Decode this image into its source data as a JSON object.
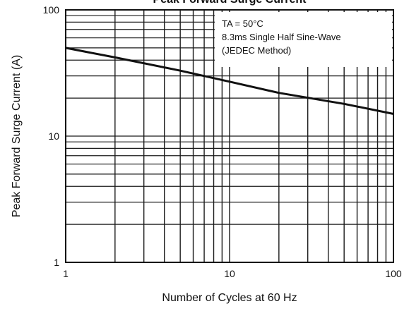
{
  "chart_data": {
    "type": "line",
    "title": "Peak Forward Surge Current",
    "xlabel": "Number of Cycles at 60 Hz",
    "ylabel": "Peak Forward Surge Current (A)",
    "x_scale": "log",
    "y_scale": "log",
    "xlim": [
      1,
      100
    ],
    "ylim": [
      1,
      100
    ],
    "x_ticks": [
      "1",
      "10",
      "100"
    ],
    "y_ticks": [
      "1",
      "10",
      "100"
    ],
    "grid": true,
    "annotation": {
      "line1": "TA = 50°C",
      "line2": "8.3ms Single Half Sine-Wave",
      "line3": "(JEDEC Method)",
      "position": "top-right"
    },
    "series": [
      {
        "x": [
          1,
          2,
          5,
          10,
          20,
          50,
          100
        ],
        "y": [
          50,
          42,
          33,
          27,
          22,
          18,
          15
        ]
      }
    ]
  }
}
